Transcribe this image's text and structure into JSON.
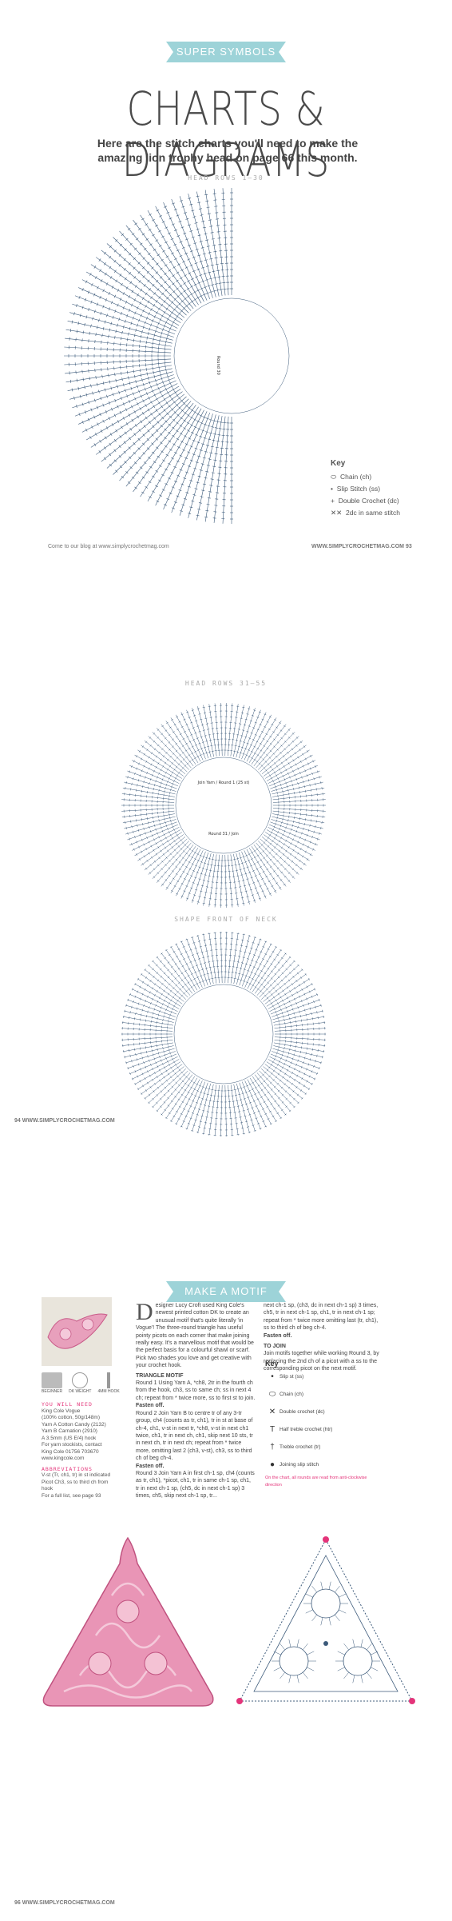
{
  "page1": {
    "banner": "SUPER SYMBOLS",
    "title": "CHARTS & DIAGRAMS",
    "intro": "Here are the stitch charts you'll need to make the amazing lion trophy head on page 66 this month.",
    "chart_label": "HEAD ROWS 1–30",
    "key": {
      "heading": "Key",
      "items": [
        {
          "symbol": "⬭",
          "label": "Chain (ch)"
        },
        {
          "symbol": "•",
          "label": "Slip Stitch (ss)"
        },
        {
          "symbol": "+",
          "label": "Double Crochet (dc)"
        },
        {
          "symbol": "✕✕",
          "label": "2dc in same stitch"
        }
      ]
    },
    "footer_left": "Come to our blog at www.simplycrochetmag.com",
    "footer_right": "WWW.SIMPLYCROCHETMAG.COM 93"
  },
  "page2": {
    "chart1_label": "HEAD ROWS 31–55",
    "chart1_inner_top": "Join Yarn / Round 1 (25 st)",
    "chart1_inner_bottom": "Round 31 / Join",
    "chart2_label": "SHAPE FRONT OF NECK",
    "footer_left": "94 WWW.SIMPLYCROCHETMAG.COM"
  },
  "page3": {
    "banner": "MAKE A MOTIF",
    "icons": [
      {
        "name": "skill",
        "label": "BEGINNER"
      },
      {
        "name": "yarn",
        "label": "DK WEIGHT"
      },
      {
        "name": "hook",
        "label": "4MM HOOK"
      }
    ],
    "you_will_need": {
      "heading": "YOU WILL NEED",
      "lines": [
        "King Cole Vogue",
        "(100% cotton, 50g/148m)",
        "Yarn A Cotton Candy (2132)",
        "Yarn B Carnation (2910)",
        "A 3.5mm (US E/4) hook",
        "For yarn stockists, contact",
        "King Cole 01756 703670",
        "www.kingcole.com"
      ]
    },
    "abbreviations": {
      "heading": "ABBREVIATIONS",
      "lines": [
        "V-st (Tr, ch1, tr) in st indicated",
        "Picot Ch3, ss to third ch from",
        "hook",
        "For a full list, see page 93"
      ]
    },
    "col1": {
      "dropcap": "D",
      "intro": "esigner Lucy Croft used King Cole's newest printed cotton DK to create an unusual motif that's quite literally 'in Vogue'! The three-round triangle has useful pointy picots on each corner that make joining really easy. It's a marvellous motif that would be the perfect basis for a colourful shawl or scarf. Pick two shades you love and get creative with your crochet hook.",
      "heading": "TRIANGLE MOTIF",
      "r1": "Round 1 Using Yarn A, *ch8, 2tr in the fourth ch from the hook, ch3, ss to same ch; ss in next 4 ch; repeat from * twice more, ss to first st to join.",
      "fo1": "Fasten off.",
      "r2": "Round 2 Join Yarn B to centre tr of any 3-tr group, ch4 (counts as tr, ch1), tr in st at base of ch-4, ch1, v-st in next tr, *ch8, v-st in next ch1 twice, ch1, tr in next ch, ch1, skip next 10 sts, tr in next ch, tr in next ch; repeat from * twice more, omitting last 2 (ch3, v-st), ch3, ss to third ch of beg ch-4.",
      "fo2": "Fasten off.",
      "r3": "Round 3 Join Yarn A in first ch-1 sp, ch4 (counts as tr, ch1), *picot, ch1, tr in same ch-1 sp, ch1, tr in next ch-1 sp, (ch5, dc in next ch-1 sp) 3 times, ch5, skip next ch-1 sp, tr..."
    },
    "col2": {
      "text": "next ch-1 sp, (ch3, dc in next ch-1 sp) 3 times, ch5, tr in next ch-1 sp, ch1, tr in next ch-1 sp; repeat from * twice more omitting last (tr, ch1), ss to third ch of beg ch-4.",
      "fo": "Fasten off.",
      "heading": "TO JOIN",
      "join": "Join motifs together while working Round 3, by replacing the 2nd ch of a picot with a ss to the corresponding picot on the next motif."
    },
    "key": {
      "heading": "Key",
      "items": [
        {
          "symbol": "•",
          "label": "Slip st (ss)"
        },
        {
          "symbol": "⬭",
          "label": "Chain (ch)"
        },
        {
          "symbol": "✕",
          "label": "Double crochet (dc)"
        },
        {
          "symbol": "T",
          "label": "Half treble crochet (htr)"
        },
        {
          "symbol": "†",
          "label": "Treble crochet (tr)"
        },
        {
          "symbol": "●",
          "label": "Joining slip stitch"
        }
      ],
      "note": "On the chart, all rounds are read from anti-clockwise direction"
    },
    "footer_left": "96 WWW.SIMPLYCROCHETMAG.COM"
  },
  "colors": {
    "accent": "#9dd3d8",
    "pink": "#e4347a",
    "chart_blue": "#3c5a7a"
  }
}
